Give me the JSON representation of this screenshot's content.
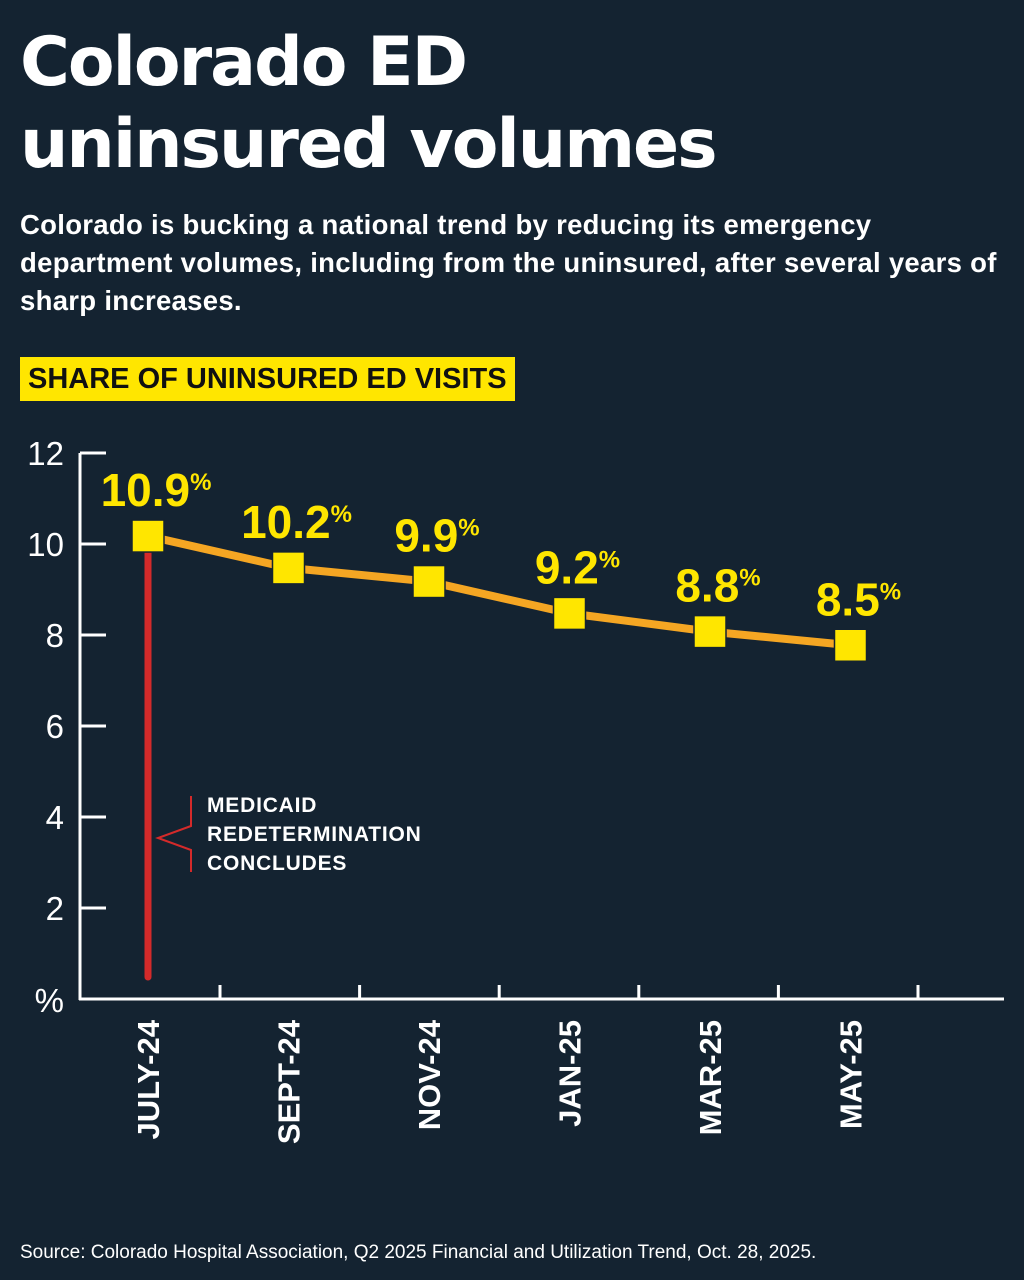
{
  "title_line1": "Colorado ED",
  "title_line2": "uninsured volumes",
  "subtitle": "Colorado is bucking a national trend by reducing its emergency department volumes, including from the uninsured, after several years of sharp increases.",
  "section_label": "SHARE OF UNINSURED ED VISITS",
  "annotation": {
    "lines": [
      "MEDICAID",
      "REDETERMINATION",
      "CONCLUDES"
    ],
    "category": "JULY-24"
  },
  "source": "Source: Colorado Hospital Association, Q2 2025 Financial and Utilization Trend, Oct. 28, 2025.",
  "colors": {
    "background": "#142331",
    "accent": "#ffe600",
    "line": "#f5a623",
    "marker": "#ffe600",
    "annotation": "#d42a2a",
    "text": "#ffffff"
  },
  "chart_data": {
    "type": "line",
    "title": "SHARE OF UNINSURED ED VISITS",
    "ylabel": "%",
    "xlabel": "",
    "categories": [
      "JULY-24",
      "SEPT-24",
      "NOV-24",
      "JAN-25",
      "MAR-25",
      "MAY-25"
    ],
    "series": [
      {
        "name": "Share of uninsured ED visits",
        "values": [
          10.9,
          10.2,
          9.9,
          9.2,
          8.8,
          8.5
        ],
        "labels": [
          "10.9",
          "10.2",
          "9.9",
          "9.2",
          "8.8",
          "8.5"
        ],
        "unit": "%"
      }
    ],
    "ylim": [
      0,
      12
    ],
    "yticks": [
      2,
      4,
      6,
      8,
      10,
      12
    ],
    "y_base_label": "%",
    "grid": false
  }
}
